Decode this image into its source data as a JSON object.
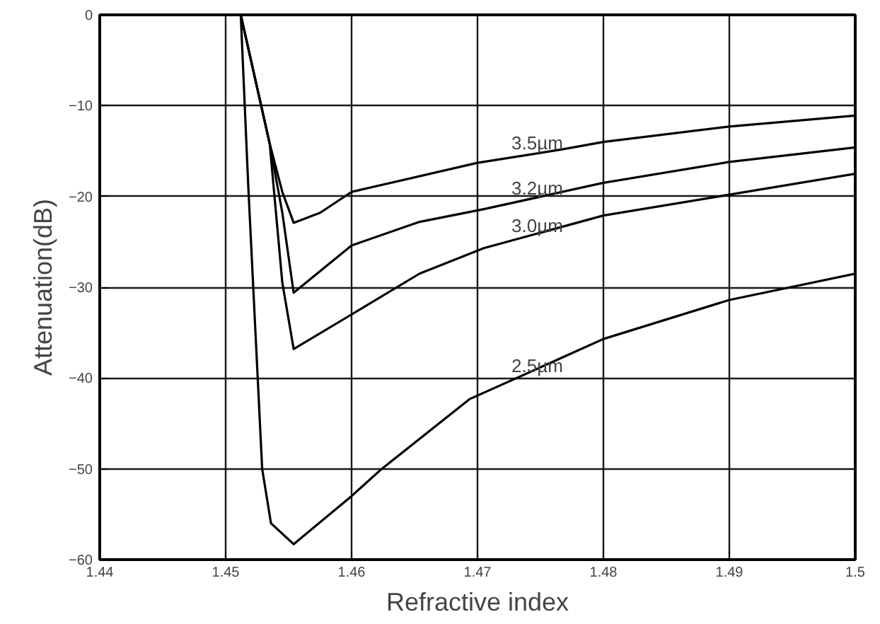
{
  "chart_data": {
    "type": "line",
    "xlabel": "Refractive index",
    "ylabel": "Attenuation(dB)",
    "xlim": [
      1.44,
      1.5
    ],
    "ylim": [
      -60,
      0
    ],
    "xticks": [
      1.44,
      1.45,
      1.46,
      1.47,
      1.48,
      1.49,
      1.5
    ],
    "yticks": [
      -60,
      -50,
      -40,
      -30,
      -20,
      -10,
      0
    ],
    "grid": true,
    "series": [
      {
        "name": "3.5µm",
        "color": "#000000",
        "x": [
          1.4512,
          1.4535,
          1.4545,
          1.4554,
          1.4575,
          1.46,
          1.47,
          1.4768,
          1.48,
          1.49,
          1.5
        ],
        "values": [
          0,
          -14.2,
          -19.5,
          -22.9,
          -21.8,
          -19.5,
          -16.3,
          -14.8,
          -14,
          -12.3,
          -11.1
        ]
      },
      {
        "color": "#000000",
        "x": [
          1.4512,
          1.4535,
          1.4545,
          1.4554,
          1.46,
          1.4654,
          1.4705,
          1.48,
          1.49,
          1.5
        ],
        "name": "3.2µm",
        "values": [
          0,
          -14.2,
          -21.8,
          -30.6,
          -25.4,
          -22.8,
          -21.4,
          -18.5,
          -16.2,
          -14.6
        ]
      },
      {
        "color": "#000000",
        "x": [
          1.4512,
          1.4535,
          1.4545,
          1.4554,
          1.46,
          1.4654,
          1.4705,
          1.48,
          1.49,
          1.5
        ],
        "name": "3.0µm",
        "values": [
          0,
          -14.2,
          -29.5,
          -36.8,
          -33,
          -28.5,
          -25.7,
          -22.1,
          -19.8,
          -17.5
        ]
      },
      {
        "color": "#000000",
        "x": [
          1.4512,
          1.4518,
          1.4529,
          1.4536,
          1.4554,
          1.46,
          1.4624,
          1.4694,
          1.4768,
          1.48,
          1.49,
          1.5
        ],
        "name": "2.5µm",
        "values": [
          0,
          -19,
          -50,
          -56,
          -58.3,
          -53,
          -50,
          -42.3,
          -37.7,
          -35.7,
          -31.4,
          -28.5
        ]
      }
    ]
  }
}
